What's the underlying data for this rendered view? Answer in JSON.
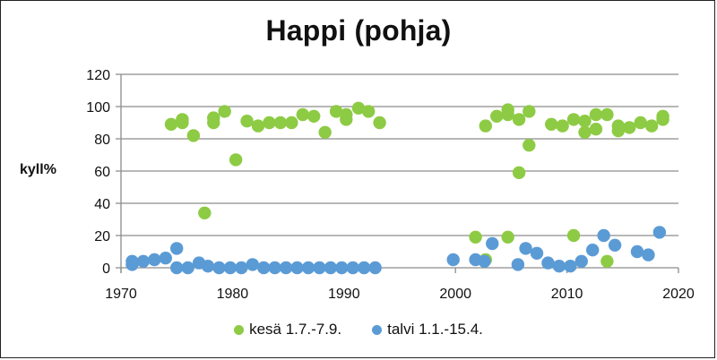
{
  "chart_data": {
    "type": "scatter",
    "title": "Happi (pohja)",
    "xlabel": "",
    "ylabel": "kyll%",
    "xlim": [
      1970,
      2020
    ],
    "ylim": [
      0,
      120
    ],
    "xticks": [
      1970,
      1980,
      1990,
      2000,
      2010,
      2020
    ],
    "yticks": [
      0,
      20,
      40,
      60,
      80,
      100,
      120
    ],
    "grid": "horizontal",
    "legend_position": "bottom",
    "series": [
      {
        "name": "kesä 1.7.-7.9.",
        "color": "#8DCB44",
        "points": [
          [
            1974.5,
            89
          ],
          [
            1975.5,
            92
          ],
          [
            1975.5,
            90
          ],
          [
            1976.5,
            82
          ],
          [
            1977.5,
            34
          ],
          [
            1978.3,
            93
          ],
          [
            1978.3,
            90
          ],
          [
            1979.3,
            97
          ],
          [
            1980.3,
            67
          ],
          [
            1981.3,
            91
          ],
          [
            1982.3,
            88
          ],
          [
            1983.3,
            90
          ],
          [
            1984.3,
            90
          ],
          [
            1985.3,
            90
          ],
          [
            1986.3,
            95
          ],
          [
            1987.3,
            94
          ],
          [
            1988.3,
            84
          ],
          [
            1989.3,
            97
          ],
          [
            1990.2,
            95
          ],
          [
            1990.2,
            92
          ],
          [
            1991.3,
            99
          ],
          [
            1992.2,
            97
          ],
          [
            1993.2,
            90
          ],
          [
            2001.8,
            19
          ],
          [
            2002.7,
            5
          ],
          [
            2002.7,
            88
          ],
          [
            2003.7,
            94
          ],
          [
            2004.7,
            19
          ],
          [
            2004.7,
            98
          ],
          [
            2004.7,
            95
          ],
          [
            2005.7,
            92
          ],
          [
            2005.7,
            59
          ],
          [
            2006.6,
            76
          ],
          [
            2006.6,
            97
          ],
          [
            2008.6,
            89
          ],
          [
            2009.6,
            88
          ],
          [
            2010.6,
            20
          ],
          [
            2010.6,
            92
          ],
          [
            2011.6,
            91
          ],
          [
            2011.6,
            84
          ],
          [
            2012.6,
            95
          ],
          [
            2012.6,
            86
          ],
          [
            2013.6,
            95
          ],
          [
            2013.6,
            4
          ],
          [
            2014.6,
            85
          ],
          [
            2014.6,
            88
          ],
          [
            2015.6,
            87
          ],
          [
            2016.6,
            90
          ],
          [
            2017.6,
            88
          ],
          [
            2018.6,
            92
          ],
          [
            2018.6,
            94
          ]
        ]
      },
      {
        "name": "talvi 1.1.-15.4.",
        "color": "#5B9BD5",
        "points": [
          [
            1971.0,
            4
          ],
          [
            1971.0,
            2
          ],
          [
            1972.0,
            4
          ],
          [
            1973.0,
            5
          ],
          [
            1974.0,
            6
          ],
          [
            1975.0,
            12
          ],
          [
            1975.0,
            0
          ],
          [
            1976.0,
            0
          ],
          [
            1977.0,
            3
          ],
          [
            1977.8,
            1
          ],
          [
            1978.8,
            0
          ],
          [
            1979.8,
            0
          ],
          [
            1980.8,
            0
          ],
          [
            1981.8,
            2
          ],
          [
            1982.8,
            0
          ],
          [
            1983.8,
            0
          ],
          [
            1984.8,
            0
          ],
          [
            1985.8,
            0
          ],
          [
            1986.8,
            0
          ],
          [
            1987.8,
            0
          ],
          [
            1988.8,
            0
          ],
          [
            1989.8,
            0
          ],
          [
            1990.8,
            0
          ],
          [
            1991.8,
            0
          ],
          [
            1992.8,
            0
          ],
          [
            1999.8,
            5
          ],
          [
            2001.8,
            5
          ],
          [
            2002.6,
            4
          ],
          [
            2003.3,
            15
          ],
          [
            2005.6,
            2
          ],
          [
            2006.3,
            12
          ],
          [
            2007.3,
            9
          ],
          [
            2008.3,
            3
          ],
          [
            2009.3,
            1
          ],
          [
            2010.3,
            1
          ],
          [
            2011.3,
            4
          ],
          [
            2012.3,
            11
          ],
          [
            2013.3,
            20
          ],
          [
            2014.3,
            14
          ],
          [
            2016.3,
            10
          ],
          [
            2017.3,
            8
          ],
          [
            2018.3,
            22
          ]
        ]
      }
    ]
  },
  "legend": {
    "items": [
      {
        "label": "kesä 1.7.-7.9.",
        "color": "#8DCB44"
      },
      {
        "label": "talvi 1.1.-15.4.",
        "color": "#5B9BD5"
      }
    ]
  }
}
